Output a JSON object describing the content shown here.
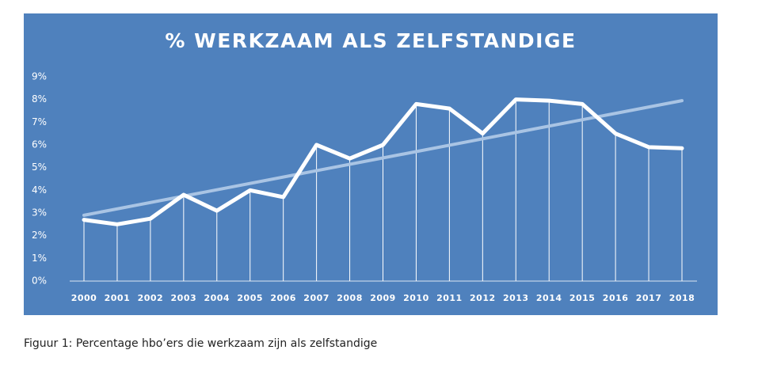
{
  "chart_data": {
    "type": "line",
    "title": "% WERKZAAM ALS ZELFSTANDIGE",
    "categories": [
      "2000",
      "2001",
      "2002",
      "2003",
      "2004",
      "2005",
      "2006",
      "2007",
      "2008",
      "2009",
      "2010",
      "2011",
      "2012",
      "2013",
      "2014",
      "2015",
      "2016",
      "2017",
      "2018"
    ],
    "values": [
      2.7,
      2.5,
      2.75,
      3.8,
      3.1,
      4.0,
      3.7,
      6.0,
      5.4,
      6.0,
      7.8,
      7.6,
      6.5,
      8.0,
      7.95,
      7.8,
      6.5,
      5.9,
      5.85
    ],
    "color": "#ffffff",
    "trendline": {
      "values": [
        2.9,
        7.95
      ],
      "color": "#a9c4e4"
    },
    "ylim": [
      0,
      9
    ],
    "yticks": [
      {
        "value": 0,
        "label": "0%"
      },
      {
        "value": 1,
        "label": "1%"
      },
      {
        "value": 2,
        "label": "2%"
      },
      {
        "value": 3,
        "label": "3%"
      },
      {
        "value": 4,
        "label": "4%"
      },
      {
        "value": 5,
        "label": "5%"
      },
      {
        "value": 6,
        "label": "6%"
      },
      {
        "value": 7,
        "label": "7%"
      },
      {
        "value": 8,
        "label": "8%"
      },
      {
        "value": 9,
        "label": "9%"
      }
    ],
    "background": "#4f81bd"
  },
  "caption": "Figuur 1: Percentage hbo’ers die werkzaam zijn als zelfstandige"
}
